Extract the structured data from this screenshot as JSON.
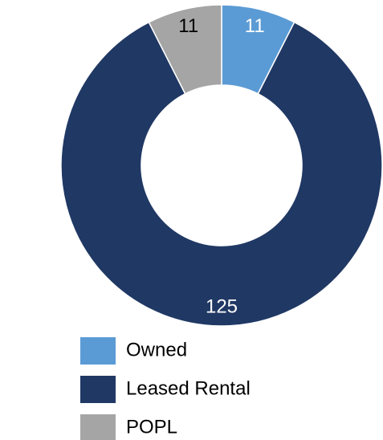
{
  "chart_data": {
    "type": "donut",
    "categories": [
      "Owned",
      "Leased Rental",
      "POPL"
    ],
    "values": [
      11,
      125,
      11
    ],
    "colors": [
      "#5b9bd5",
      "#203864",
      "#a5a5a5"
    ],
    "label_colors": [
      "#ffffff",
      "#ffffff",
      "#000000"
    ],
    "legend": "bottom"
  }
}
